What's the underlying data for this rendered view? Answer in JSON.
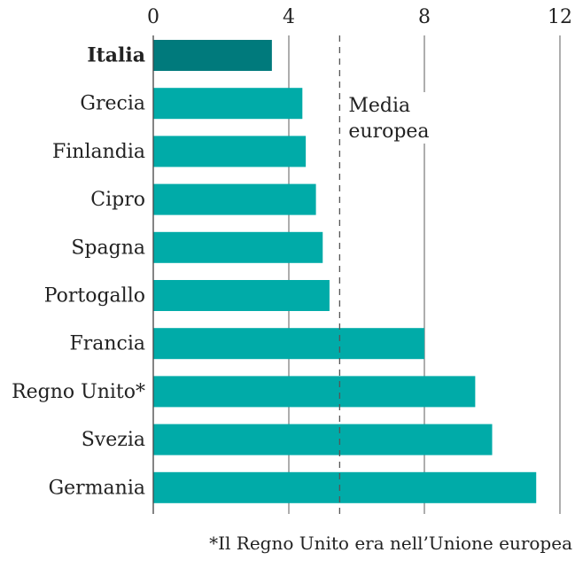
{
  "chart_data": {
    "type": "bar",
    "orientation": "horizontal",
    "title": "",
    "xlabel": "",
    "ylabel": "",
    "xlim": [
      0,
      12
    ],
    "xticks": [
      0,
      4,
      8,
      12
    ],
    "xtick_labels": [
      "0",
      "4",
      "8",
      "12"
    ],
    "grid": true,
    "categories": [
      "Italia",
      "Grecia",
      "Finlandia",
      "Cipro",
      "Spagna",
      "Portogallo",
      "Francia",
      "Regno Unito*",
      "Svezia",
      "Germania"
    ],
    "values": [
      3.5,
      4.4,
      4.5,
      4.8,
      5.0,
      5.2,
      8.0,
      9.5,
      10.0,
      11.3
    ],
    "highlight": "Italia",
    "colors": {
      "default": "#00aba8",
      "highlight": "#007a7c",
      "grid": "#777777",
      "reference": "#555555"
    },
    "reference_line": {
      "value": 5.5,
      "label_line1": "Media",
      "label_line2": "europea",
      "style": "dashed"
    },
    "footnote": "*Il Regno Unito era nell’Unione europea"
  }
}
